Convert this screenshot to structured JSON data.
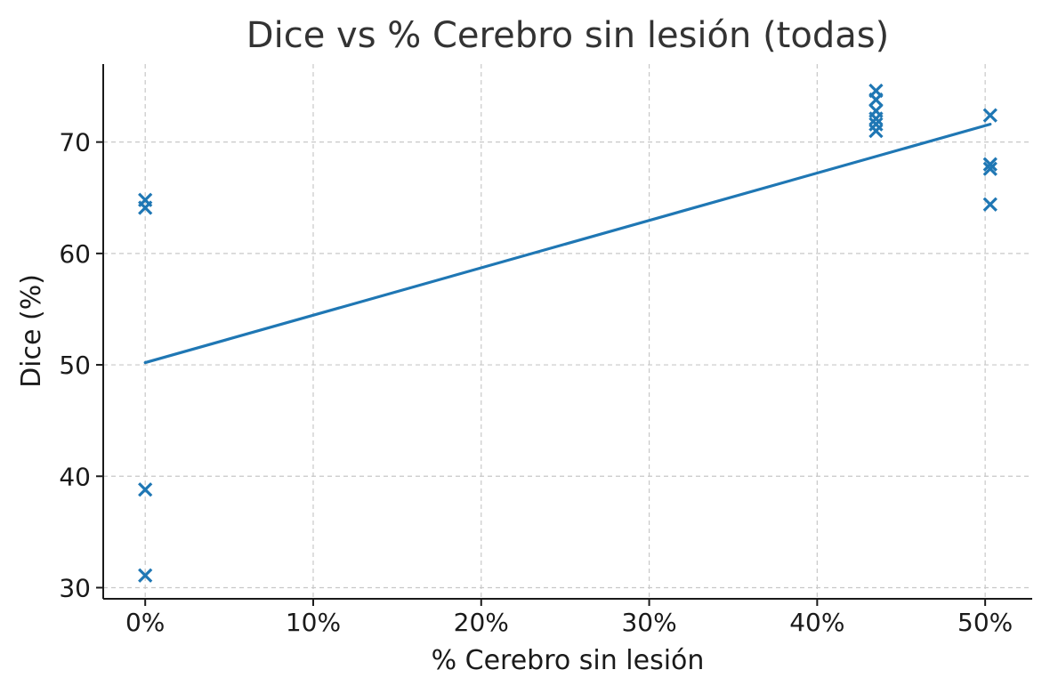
{
  "chart_data": {
    "type": "scatter",
    "title": "Dice vs % Cerebro sin lesión (todas)",
    "xlabel": "% Cerebro sin lesión",
    "ylabel": "Dice (%)",
    "xlim": [
      -2.5,
      52.8
    ],
    "ylim": [
      29,
      77
    ],
    "x_ticks": [
      0,
      10,
      20,
      30,
      40,
      50
    ],
    "x_tick_labels": [
      "0%",
      "10%",
      "20%",
      "30%",
      "40%",
      "50%"
    ],
    "y_ticks": [
      30,
      40,
      50,
      60,
      70
    ],
    "y_tick_labels": [
      "30",
      "40",
      "50",
      "60",
      "70"
    ],
    "grid": true,
    "legend": "none",
    "marker": "x",
    "color": "#1f77b4",
    "series": [
      {
        "points": [
          {
            "x": 0,
            "y": 64.8
          },
          {
            "x": 0,
            "y": 64.1
          },
          {
            "x": 0,
            "y": 38.8
          },
          {
            "x": 0,
            "y": 31.1
          },
          {
            "x": 43.5,
            "y": 74.6
          },
          {
            "x": 43.5,
            "y": 73.8
          },
          {
            "x": 43.5,
            "y": 72.8
          },
          {
            "x": 43.5,
            "y": 72.1
          },
          {
            "x": 43.5,
            "y": 71.6
          },
          {
            "x": 43.5,
            "y": 71.0
          },
          {
            "x": 50.3,
            "y": 72.4
          },
          {
            "x": 50.3,
            "y": 68.0
          },
          {
            "x": 50.3,
            "y": 67.6
          },
          {
            "x": 50.3,
            "y": 64.4
          }
        ]
      }
    ],
    "trendline": {
      "x": [
        0,
        50.3
      ],
      "y": [
        50.2,
        71.6
      ]
    }
  }
}
